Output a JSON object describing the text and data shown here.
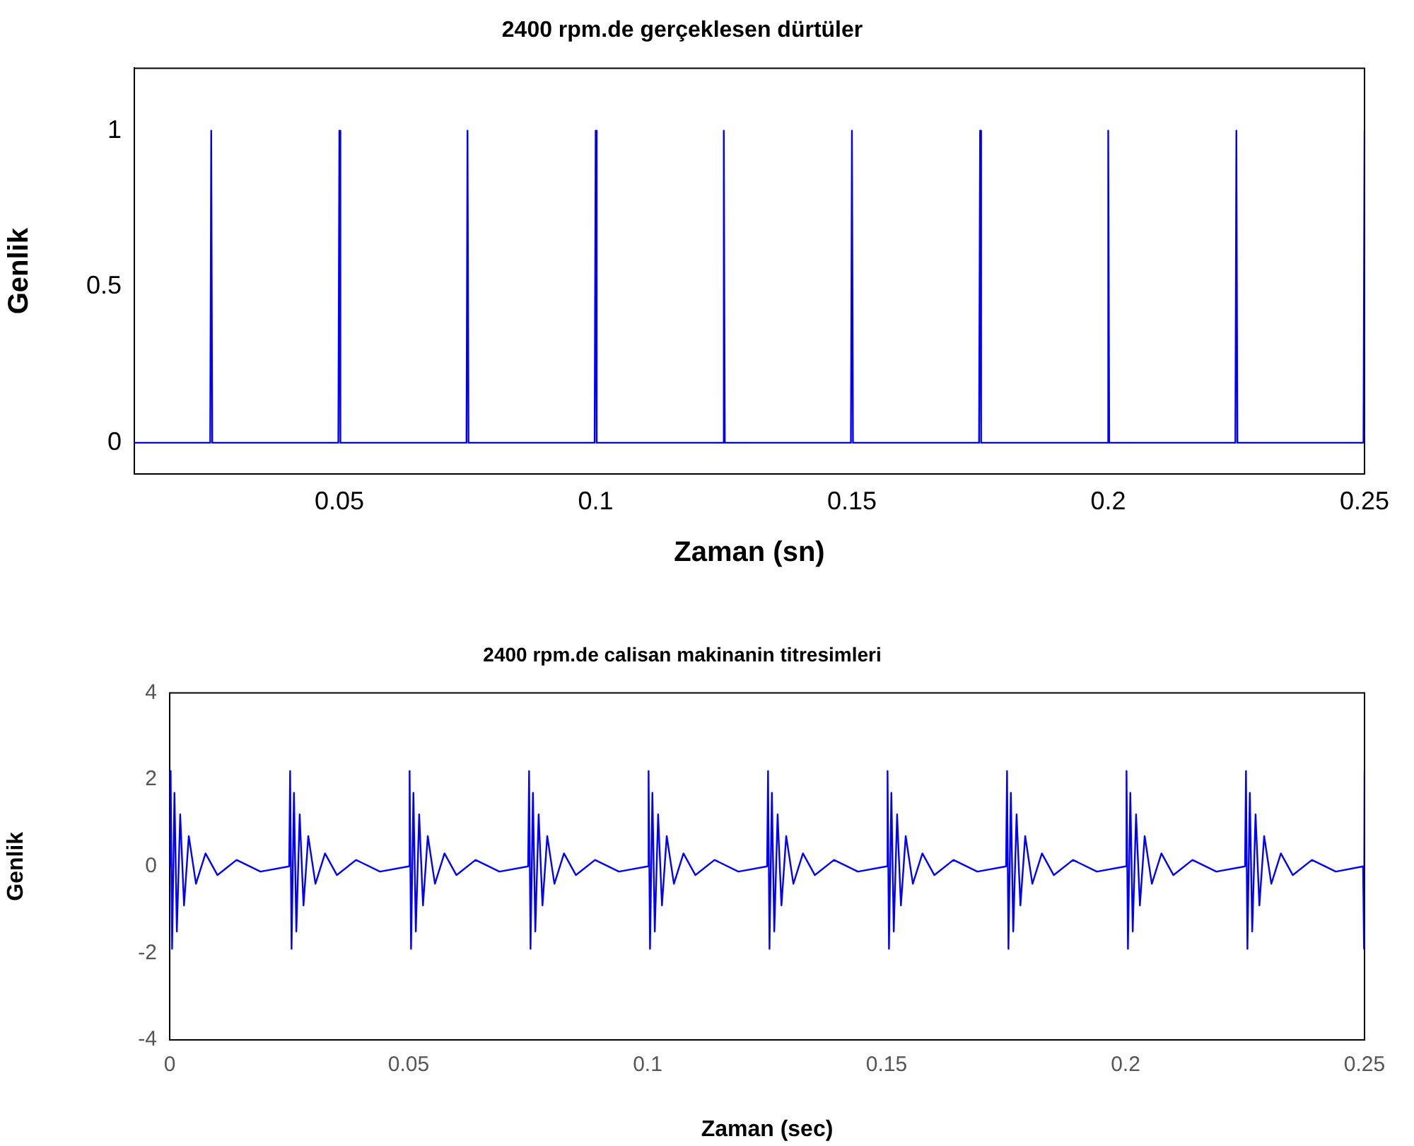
{
  "chart_data": [
    {
      "type": "line",
      "title": "2400 rpm.de gerçeklesen dürtüler",
      "xlabel": "Zaman (sn)",
      "ylabel": "Genlik",
      "marker": "none",
      "xlim": [
        0.01,
        0.25
      ],
      "ylim": [
        -0.1,
        1.2
      ],
      "xticks": [
        0.05,
        0.1,
        0.15,
        0.2,
        0.25
      ],
      "yticks": [
        0,
        0.5,
        1
      ],
      "x": [
        0.01,
        0.0248,
        0.025,
        0.0252,
        0.0498,
        0.05,
        0.0502,
        0.0748,
        0.075,
        0.0752,
        0.0998,
        0.1,
        0.1002,
        0.1248,
        0.125,
        0.1252,
        0.1498,
        0.15,
        0.1502,
        0.1748,
        0.175,
        0.1752,
        0.1998,
        0.2,
        0.2002,
        0.2248,
        0.225,
        0.2252,
        0.2498,
        0.25
      ],
      "series": [
        {
          "color": "#0000ff",
          "values": [
            0,
            0,
            1,
            0,
            0,
            1,
            0,
            0,
            1,
            0,
            0,
            1,
            0,
            0,
            1,
            0,
            0,
            1,
            0,
            0,
            1,
            0,
            0,
            1,
            0,
            0,
            1,
            0,
            0,
            1
          ]
        }
      ]
    },
    {
      "type": "line",
      "title": "2400 rpm.de calisan makinanin titresimleri",
      "xlabel": "Zaman (sec)",
      "ylabel": "Genlik",
      "marker": "none",
      "xlim": [
        0,
        0.25
      ],
      "ylim": [
        -4,
        4
      ],
      "xticks": [
        0,
        0.05,
        0.1,
        0.15,
        0.2,
        0.25
      ],
      "yticks": [
        -4,
        -2,
        0,
        2,
        4
      ],
      "x": [
        0,
        0.0002,
        0.0005,
        0.001,
        0.0015,
        0.0022,
        0.003,
        0.004,
        0.0055,
        0.0075,
        0.01,
        0.014,
        0.019,
        0.025,
        0.0252,
        0.0255,
        0.026,
        0.0265,
        0.0272,
        0.028,
        0.029,
        0.0305,
        0.0325,
        0.035,
        0.039,
        0.044,
        0.05,
        0.0502,
        0.0505,
        0.051,
        0.0515,
        0.0522,
        0.053,
        0.054,
        0.0555,
        0.0575,
        0.06,
        0.064,
        0.069,
        0.075,
        0.0752,
        0.0755,
        0.076,
        0.0765,
        0.0772,
        0.078,
        0.079,
        0.0805,
        0.0825,
        0.085,
        0.089,
        0.094,
        0.1,
        0.1002,
        0.1005,
        0.101,
        0.1015,
        0.1022,
        0.103,
        0.104,
        0.1055,
        0.1075,
        0.11,
        0.114,
        0.119,
        0.125,
        0.1252,
        0.1255,
        0.126,
        0.1265,
        0.1272,
        0.128,
        0.129,
        0.1305,
        0.1325,
        0.135,
        0.139,
        0.144,
        0.15,
        0.1502,
        0.1505,
        0.151,
        0.1515,
        0.1522,
        0.153,
        0.154,
        0.1555,
        0.1575,
        0.16,
        0.164,
        0.169,
        0.175,
        0.1752,
        0.1755,
        0.176,
        0.1765,
        0.1772,
        0.178,
        0.179,
        0.1805,
        0.1825,
        0.185,
        0.189,
        0.194,
        0.2,
        0.2002,
        0.2005,
        0.201,
        0.2015,
        0.2022,
        0.203,
        0.204,
        0.2055,
        0.2075,
        0.21,
        0.214,
        0.219,
        0.225,
        0.2252,
        0.2255,
        0.226,
        0.2265,
        0.2272,
        0.228,
        0.229,
        0.2305,
        0.2325,
        0.235,
        0.239,
        0.244,
        0.2497,
        0.2499,
        0.25
      ],
      "series": [
        {
          "color": "#0000ff",
          "values": [
            0,
            2.2,
            -1.9,
            1.7,
            -1.5,
            1.2,
            -0.9,
            0.7,
            -0.4,
            0.3,
            -0.2,
            0.15,
            -0.12,
            0,
            2.2,
            -1.9,
            1.7,
            -1.5,
            1.2,
            -0.9,
            0.7,
            -0.4,
            0.3,
            -0.2,
            0.15,
            -0.12,
            0,
            2.2,
            -1.9,
            1.7,
            -1.5,
            1.2,
            -0.9,
            0.7,
            -0.4,
            0.3,
            -0.2,
            0.15,
            -0.12,
            0,
            2.2,
            -1.9,
            1.7,
            -1.5,
            1.2,
            -0.9,
            0.7,
            -0.4,
            0.3,
            -0.2,
            0.15,
            -0.12,
            0,
            2.2,
            -1.9,
            1.7,
            -1.5,
            1.2,
            -0.9,
            0.7,
            -0.4,
            0.3,
            -0.2,
            0.15,
            -0.12,
            0,
            2.2,
            -1.9,
            1.7,
            -1.5,
            1.2,
            -0.9,
            0.7,
            -0.4,
            0.3,
            -0.2,
            0.15,
            -0.12,
            0,
            2.2,
            -1.9,
            1.7,
            -1.5,
            1.2,
            -0.9,
            0.7,
            -0.4,
            0.3,
            -0.2,
            0.15,
            -0.12,
            0,
            2.2,
            -1.9,
            1.7,
            -1.5,
            1.2,
            -0.9,
            0.7,
            -0.4,
            0.3,
            -0.2,
            0.15,
            -0.12,
            0,
            2.2,
            -1.9,
            1.7,
            -1.5,
            1.2,
            -0.9,
            0.7,
            -0.4,
            0.3,
            -0.2,
            0.15,
            -0.12,
            0,
            2.2,
            -1.9,
            1.7,
            -1.5,
            1.2,
            -0.9,
            0.7,
            -0.4,
            0.3,
            -0.2,
            0.15,
            -0.12,
            0,
            -1.9,
            2.2
          ]
        }
      ]
    }
  ]
}
